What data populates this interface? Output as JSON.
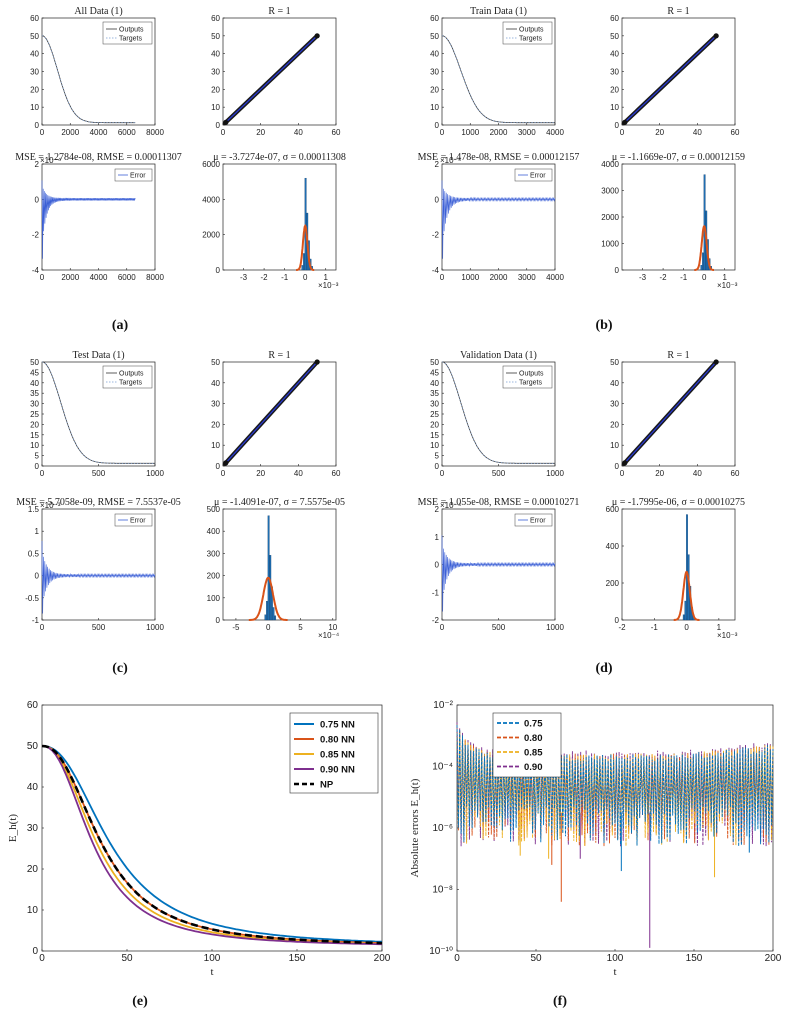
{
  "panel_labels": [
    "(a)",
    "(b)",
    "(c)",
    "(d)",
    "(e)",
    "(f)"
  ],
  "chart_data": [
    {
      "panel": "(a)",
      "subplots": [
        {
          "type": "line",
          "title": "All Data (1)",
          "xlim": [
            0,
            8000
          ],
          "ylim": [
            0,
            60
          ],
          "xticks": [
            "0",
            "2000",
            "4000",
            "6000",
            "8000"
          ],
          "yticks": [
            "0",
            "10",
            "20",
            "30",
            "40",
            "50",
            "60"
          ],
          "legend": [
            "Outputs",
            "Targets"
          ],
          "xmax_data": 6600,
          "y0": 50,
          "decay": 1200
        },
        {
          "type": "scatter",
          "title": "R = 1",
          "xlim": [
            0,
            60
          ],
          "ylim": [
            0,
            60
          ],
          "xticks": [
            "0",
            "20",
            "40",
            "60"
          ],
          "yticks": [
            "0",
            "10",
            "20",
            "30",
            "40",
            "50",
            "60"
          ]
        },
        {
          "type": "line",
          "title": "MSE = 1.2784e-08, RMSE = 0.00011307",
          "exponent": "×10⁻⁴",
          "xlim": [
            0,
            8000
          ],
          "ylim": [
            -4,
            2
          ],
          "xticks": [
            "0",
            "2000",
            "4000",
            "6000",
            "8000"
          ],
          "yticks": [
            "-4",
            "-2",
            "0",
            "2"
          ],
          "legend": [
            "Error"
          ],
          "xmax_data": 6600
        },
        {
          "type": "bar",
          "title": "μ = -3.7274e-07, σ = 0.00011308",
          "exponent": "×10⁻³",
          "xlim": [
            -4,
            1.5
          ],
          "ylim": [
            0,
            6000
          ],
          "xticks": [
            "-3",
            "-2",
            "-1",
            "0",
            "1"
          ],
          "xtick_values": [
            -3,
            -2,
            -1,
            0,
            1
          ],
          "yticks": [
            "0",
            "2000",
            "4000",
            "6000"
          ],
          "peak": 5200,
          "gauss_peak": 2500,
          "sigma": 0.11
        }
      ]
    },
    {
      "panel": "(b)",
      "subplots": [
        {
          "type": "line",
          "title": "Train Data (1)",
          "xlim": [
            0,
            4700
          ],
          "ylim": [
            0,
            60
          ],
          "xticks": [
            "0",
            "1000",
            "2000",
            "3000",
            "4000"
          ],
          "yticks": [
            "0",
            "10",
            "20",
            "30",
            "40",
            "50",
            "60"
          ],
          "legend": [
            "Outputs",
            "Targets"
          ],
          "xmax_data": 4700,
          "y0": 50,
          "decay": 850
        },
        {
          "type": "scatter",
          "title": "R = 1",
          "xlim": [
            0,
            60
          ],
          "ylim": [
            0,
            60
          ],
          "xticks": [
            "0",
            "20",
            "40",
            "60"
          ],
          "yticks": [
            "0",
            "10",
            "20",
            "30",
            "40",
            "50",
            "60"
          ]
        },
        {
          "type": "line",
          "title": "MSE = 1.478e-08, RMSE = 0.00012157",
          "exponent": "×10⁻⁴",
          "xlim": [
            0,
            4700
          ],
          "ylim": [
            -4,
            2
          ],
          "xticks": [
            "0",
            "1000",
            "2000",
            "3000",
            "4000"
          ],
          "yticks": [
            "-4",
            "-2",
            "0",
            "2"
          ],
          "legend": [
            "Error"
          ],
          "xmax_data": 4700
        },
        {
          "type": "bar",
          "title": "μ = -1.1669e-07, σ = 0.00012159",
          "exponent": "×10⁻³",
          "xlim": [
            -4,
            1.5
          ],
          "ylim": [
            0,
            4000
          ],
          "xticks": [
            "-3",
            "-2",
            "-1",
            "0",
            "1"
          ],
          "xtick_values": [
            -3,
            -2,
            -1,
            0,
            1
          ],
          "yticks": [
            "0",
            "1000",
            "2000",
            "3000",
            "4000"
          ],
          "peak": 3600,
          "gauss_peak": 1650,
          "sigma": 0.12
        }
      ]
    },
    {
      "panel": "(c)",
      "subplots": [
        {
          "type": "line",
          "title": "Test Data (1)",
          "xlim": [
            0,
            1000
          ],
          "ylim": [
            0,
            50
          ],
          "xticks": [
            "0",
            "500",
            "1000"
          ],
          "yticks": [
            "0",
            "5",
            "10",
            "15",
            "20",
            "25",
            "30",
            "35",
            "40",
            "45",
            "50"
          ],
          "legend": [
            "Outputs",
            "Targets"
          ],
          "xmax_data": 1000,
          "y0": 50,
          "decay": 180
        },
        {
          "type": "scatter",
          "title": "R = 1",
          "xlim": [
            0,
            60
          ],
          "ylim": [
            0,
            50
          ],
          "xticks": [
            "0",
            "20",
            "40",
            "60"
          ],
          "yticks": [
            "0",
            "10",
            "20",
            "30",
            "40",
            "50"
          ]
        },
        {
          "type": "line",
          "title": "MSE = 5.7058e-09, RMSE = 7.5537e-05",
          "exponent": "×10⁻³",
          "xlim": [
            0,
            1000
          ],
          "ylim": [
            -1,
            1.5
          ],
          "xticks": [
            "0",
            "500",
            "1000"
          ],
          "yticks": [
            "-1",
            "-0.5",
            "0",
            "0.5",
            "1",
            "1.5"
          ],
          "legend": [
            "Error"
          ],
          "xmax_data": 1000
        },
        {
          "type": "bar",
          "title": "μ = -1.4091e-07, σ = 7.5575e-05",
          "exponent": "×10⁻⁴",
          "xlim": [
            -7,
            10.5
          ],
          "ylim": [
            0,
            500
          ],
          "xticks": [
            "-5",
            "0",
            "5",
            "10"
          ],
          "xtick_values": [
            -5,
            0,
            5,
            10
          ],
          "yticks": [
            "0",
            "100",
            "200",
            "300",
            "400",
            "500"
          ],
          "peak": 470,
          "gauss_peak": 190,
          "sigma": 0.75
        }
      ]
    },
    {
      "panel": "(d)",
      "subplots": [
        {
          "type": "line",
          "title": "Validation Data (1)",
          "xlim": [
            0,
            1000
          ],
          "ylim": [
            0,
            50
          ],
          "xticks": [
            "0",
            "500",
            "1000"
          ],
          "yticks": [
            "0",
            "5",
            "10",
            "15",
            "20",
            "25",
            "30",
            "35",
            "40",
            "45",
            "50"
          ],
          "legend": [
            "Outputs",
            "Targets"
          ],
          "xmax_data": 1000,
          "y0": 50,
          "decay": 180
        },
        {
          "type": "scatter",
          "title": "R = 1",
          "xlim": [
            0,
            60
          ],
          "ylim": [
            0,
            50
          ],
          "xticks": [
            "0",
            "20",
            "40",
            "60"
          ],
          "yticks": [
            "0",
            "10",
            "20",
            "30",
            "40",
            "50"
          ]
        },
        {
          "type": "line",
          "title": "MSE = 1.055e-08, RMSE = 0.00010271",
          "exponent": "×10⁻⁴",
          "xlim": [
            0,
            1000
          ],
          "ylim": [
            -2,
            2
          ],
          "xticks": [
            "0",
            "500",
            "1000"
          ],
          "yticks": [
            "-2",
            "-1",
            "0",
            "1",
            "2"
          ],
          "legend": [
            "Error"
          ],
          "xmax_data": 1000
        },
        {
          "type": "bar",
          "title": "μ = -1.7995e-06, σ = 0.00010275",
          "exponent": "×10⁻³",
          "xlim": [
            -2,
            1.5
          ],
          "ylim": [
            0,
            600
          ],
          "xticks": [
            "-2",
            "-1",
            "0",
            "1"
          ],
          "xtick_values": [
            -2,
            -1,
            0,
            1
          ],
          "yticks": [
            "0",
            "200",
            "400",
            "600"
          ],
          "peak": 570,
          "gauss_peak": 260,
          "sigma": 0.1
        }
      ]
    },
    {
      "panel": "(e)",
      "type": "line",
      "xlabel": "t",
      "ylabel": "E_h(t)",
      "xlim": [
        0,
        200
      ],
      "ylim": [
        0,
        60
      ],
      "xticks": [
        "0",
        "50",
        "100",
        "150",
        "200"
      ],
      "yticks": [
        "0",
        "10",
        "20",
        "30",
        "40",
        "50",
        "60"
      ],
      "series": [
        {
          "name": "0.75 NN",
          "color": "#0072bd",
          "k": 0.0206
        },
        {
          "name": "0.80 NN",
          "color": "#d95319",
          "k": 0.0236
        },
        {
          "name": "0.85 NN",
          "color": "#edb120",
          "k": 0.0256
        },
        {
          "name": "0.90 NN",
          "color": "#7e2f8e",
          "k": 0.0276
        },
        {
          "name": "NP",
          "color": "#000000",
          "k": 0.0236,
          "dashed": true
        }
      ]
    },
    {
      "panel": "(f)",
      "type": "line",
      "yscale": "log",
      "xlabel": "t",
      "ylabel": "Absolute errors E_h(t)",
      "xlim": [
        0,
        200
      ],
      "ylim_exp": [
        -10,
        -2
      ],
      "xticks": [
        "0",
        "50",
        "100",
        "150",
        "200"
      ],
      "yticks": [
        "10⁻¹⁰",
        "10⁻⁸",
        "10⁻⁶",
        "10⁻⁴",
        "10⁻²"
      ],
      "series": [
        {
          "name": "0.75",
          "color": "#0072bd"
        },
        {
          "name": "0.80",
          "color": "#d95319"
        },
        {
          "name": "0.85",
          "color": "#edb120"
        },
        {
          "name": "0.90",
          "color": "#7e2f8e"
        }
      ]
    }
  ]
}
